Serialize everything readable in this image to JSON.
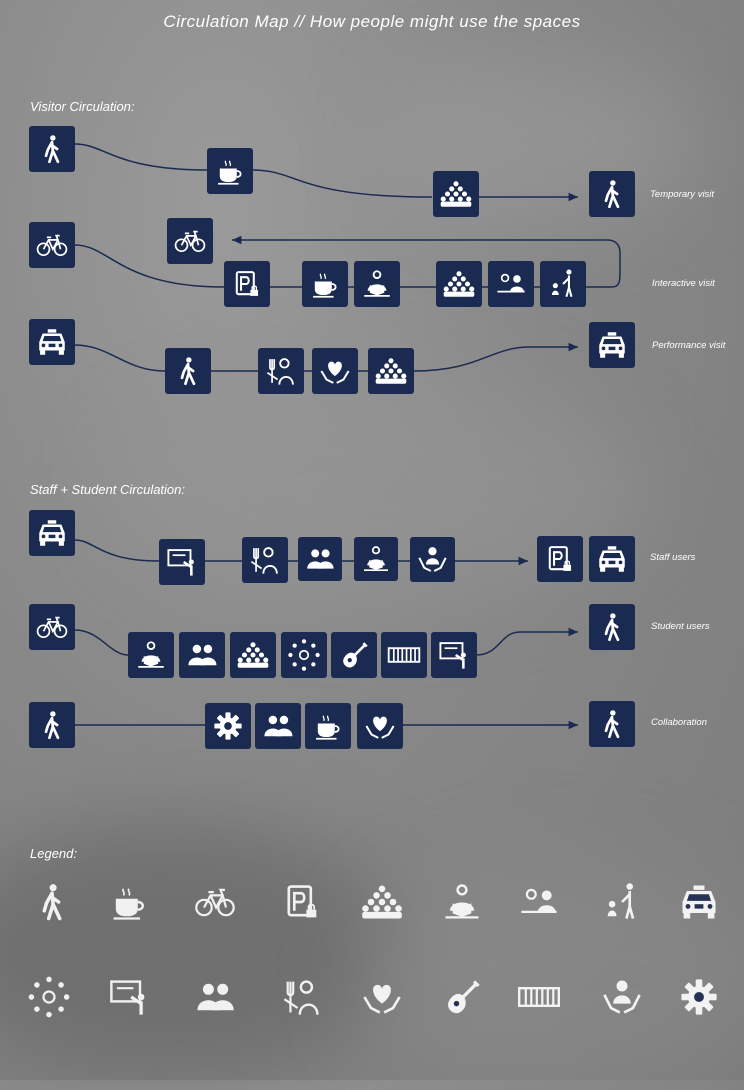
{
  "header": {
    "title": "Circulation Map  //  How people might use the spaces"
  },
  "sections": {
    "visitor": "Visitor Circulation:",
    "staff": "Staff + Student Circulation:",
    "legend": "Legend:"
  },
  "routes": {
    "temporary": "Temporary visit",
    "interactive": "Interactive visit",
    "performance": "Performance visit",
    "staff": "Staff users",
    "student": "Student users",
    "collaboration": "Collaboration"
  },
  "colors": {
    "node": "#1b2a50",
    "line": "#1b2a50",
    "legend": "#ffffff"
  },
  "legend_icons": [
    "walk-icon",
    "coffee-icon",
    "bike-icon",
    "parking-icon",
    "audience-icon",
    "reading-icon",
    "meeting-icon",
    "family-icon",
    "taxi-icon",
    "network-icon",
    "teaching-icon",
    "people-icon",
    "dining-icon",
    "care-icon",
    "guitar-icon",
    "piano-icon",
    "support-icon",
    "gear-icon"
  ]
}
